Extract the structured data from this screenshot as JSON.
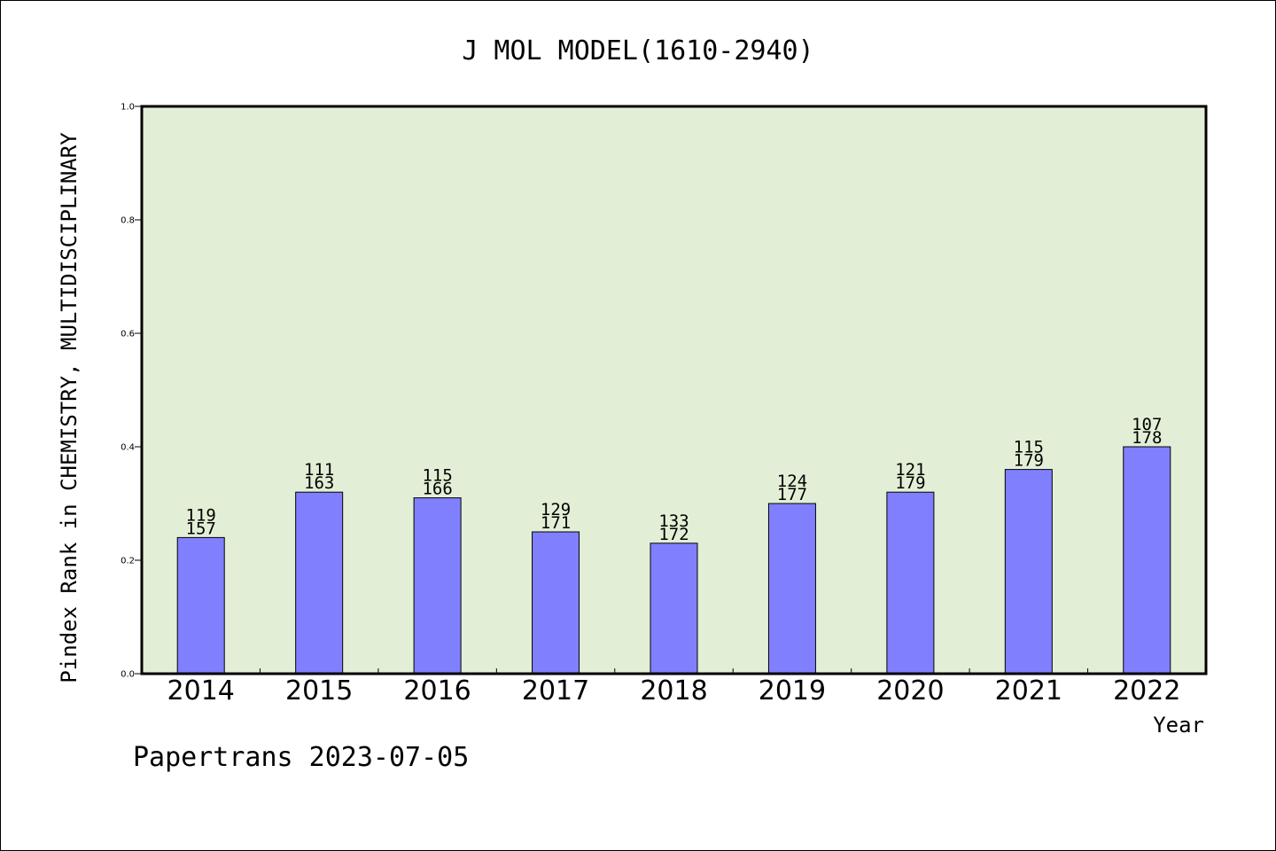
{
  "chart_data": {
    "type": "bar",
    "title": "J MOL MODEL(1610-2940)",
    "xlabel": "Year",
    "ylabel": "Pindex Rank in CHEMISTRY, MULTIDISCIPLINARY",
    "footer": "Papertrans 2023-07-05",
    "categories": [
      "2014",
      "2015",
      "2016",
      "2017",
      "2018",
      "2019",
      "2020",
      "2021",
      "2022"
    ],
    "values": [
      0.24,
      0.32,
      0.31,
      0.25,
      0.23,
      0.3,
      0.32,
      0.36,
      0.4
    ],
    "label_top": [
      "119",
      "111",
      "115",
      "129",
      "133",
      "124",
      "121",
      "115",
      "107"
    ],
    "label_bottom": [
      "157",
      "163",
      "166",
      "171",
      "172",
      "177",
      "179",
      "179",
      "178"
    ],
    "ylim": [
      0,
      1.0
    ],
    "yticks": [
      "0.0",
      "0.2",
      "0.4",
      "0.6",
      "0.8",
      "1.0"
    ],
    "grid": false,
    "colors": {
      "plot_background": "#e2efd6",
      "bar": "#8080ff",
      "axis": "#000000"
    }
  }
}
